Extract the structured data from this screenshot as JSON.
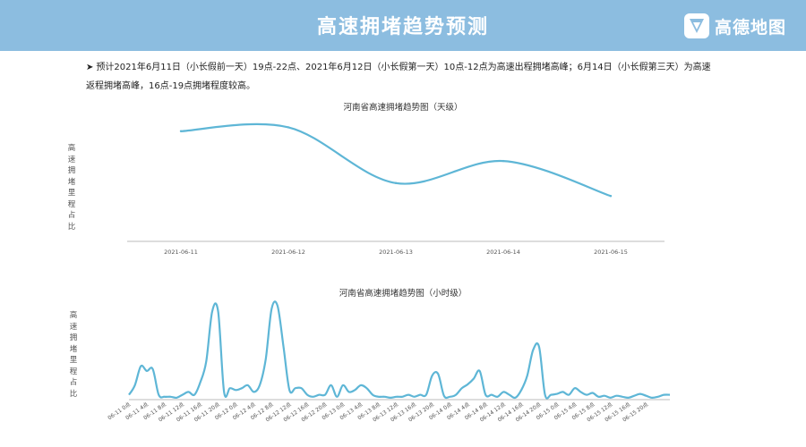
{
  "header": {
    "title": "高速拥堵趋势预测",
    "logo_text": "高德地图",
    "background_color": "#8cbde0",
    "logo_icon": "amap-logo-icon"
  },
  "note": {
    "bullet": "➤",
    "text": "预计2021年6月11日（小长假前一天）19点-22点、2021年6月12日（小长假第一天）10点-12点为高速出程拥堵高峰；6月14日（小长假第三天）为高速返程拥堵高峰，16点-19点拥堵程度较高。"
  },
  "line_color": "#5eb6d6",
  "chart_data": [
    {
      "type": "line",
      "title": "河南省高速拥堵趋势图（天级）",
      "ylabel": "高速拥堵里程占比",
      "xlabel": "",
      "categories": [
        "2021-06-11",
        "2021-06-12",
        "2021-06-13",
        "2021-06-14",
        "2021-06-15"
      ],
      "values": [
        0.85,
        0.88,
        0.45,
        0.62,
        0.35
      ],
      "ylim": [
        0,
        1
      ],
      "smooth": true,
      "grid": false,
      "legend": "none"
    },
    {
      "type": "line",
      "title": "河南省高速拥堵趋势图（小时级）",
      "ylabel": "高速拥堵里程占比",
      "xlabel": "",
      "tick_labels": [
        "06-11 0点",
        "06-11 4点",
        "06-11 8点",
        "06-11 12点",
        "06-11 16点",
        "06-11 20点",
        "06-12 0点",
        "06-12 4点",
        "06-12 8点",
        "06-12 12点",
        "06-12 16点",
        "06-12 20点",
        "06-13 0点",
        "06-13 4点",
        "06-13 8点",
        "06-13 12点",
        "06-13 16点",
        "06-13 20点",
        "06-14 0点",
        "06-14 4点",
        "06-14 8点",
        "06-14 12点",
        "06-14 16点",
        "06-14 20点",
        "06-15 0点",
        "06-15 4点",
        "06-15 8点",
        "06-15 12点",
        "06-15 16点",
        "06-15 20点"
      ],
      "values": [
        0.05,
        0.15,
        0.35,
        0.3,
        0.32,
        0.05,
        0.03,
        0.03,
        0.02,
        0.05,
        0.08,
        0.05,
        0.18,
        0.4,
        0.92,
        0.92,
        0.08,
        0.12,
        0.1,
        0.12,
        0.15,
        0.08,
        0.15,
        0.42,
        0.95,
        0.98,
        0.55,
        0.1,
        0.12,
        0.12,
        0.05,
        0.03,
        0.05,
        0.05,
        0.15,
        0.03,
        0.15,
        0.08,
        0.1,
        0.15,
        0.12,
        0.05,
        0.03,
        0.03,
        0.02,
        0.03,
        0.03,
        0.05,
        0.03,
        0.05,
        0.05,
        0.25,
        0.27,
        0.04,
        0.03,
        0.05,
        0.12,
        0.16,
        0.22,
        0.3,
        0.05,
        0.05,
        0.03,
        0.08,
        0.05,
        0.02,
        0.1,
        0.25,
        0.52,
        0.55,
        0.05,
        0.05,
        0.06,
        0.08,
        0.05,
        0.12,
        0.08,
        0.05,
        0.07,
        0.03,
        0.04,
        0.02,
        0.04,
        0.03,
        0.02,
        0.04,
        0.06,
        0.04,
        0.02,
        0.03,
        0.05,
        0.05
      ],
      "ylim": [
        0,
        1
      ],
      "smooth": true,
      "grid": false,
      "legend": "none"
    }
  ]
}
